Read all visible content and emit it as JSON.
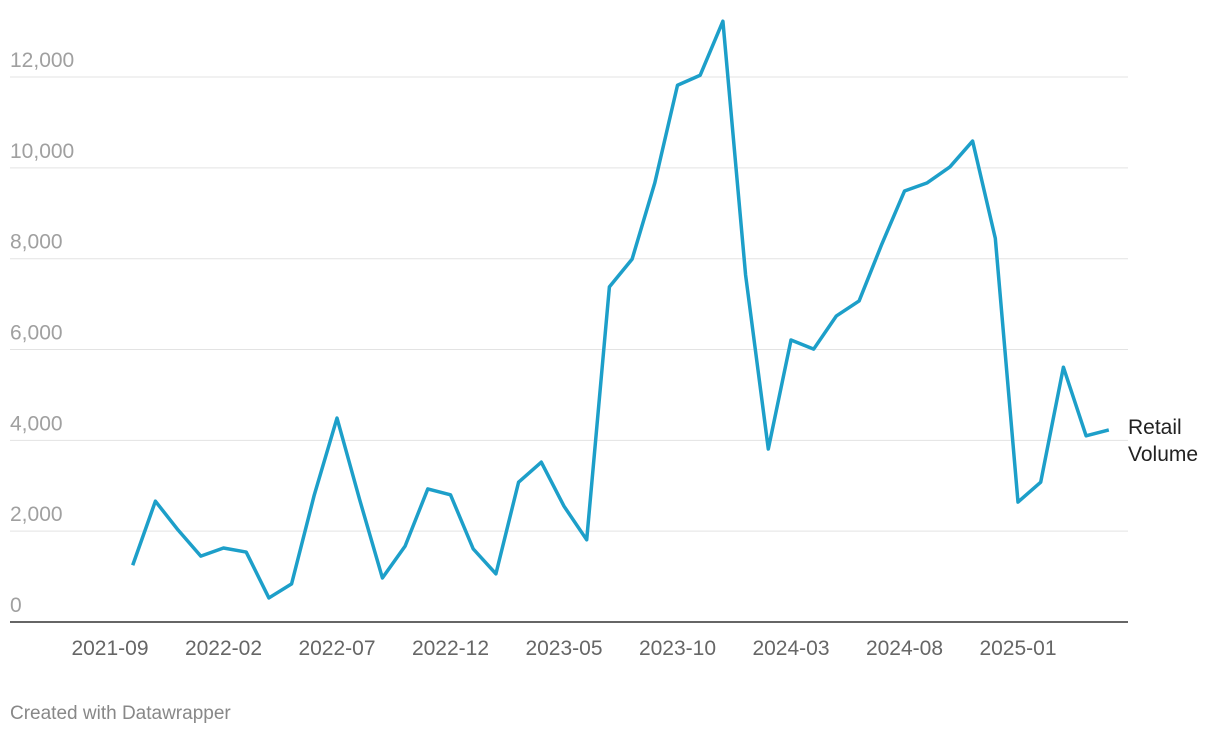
{
  "chart_data": {
    "type": "line",
    "categories": [
      "2021-09",
      null,
      null,
      null,
      null,
      "2022-02",
      null,
      null,
      null,
      null,
      "2022-07",
      null,
      null,
      null,
      null,
      "2022-12",
      null,
      null,
      null,
      null,
      "2023-05",
      null,
      null,
      null,
      null,
      "2023-10",
      null,
      null,
      null,
      null,
      "2024-03",
      null,
      null,
      null,
      null,
      "2024-08",
      null,
      null,
      null,
      null,
      "2025-01",
      null,
      null,
      null,
      null
    ],
    "series": [
      {
        "name": "Retail Volume",
        "color": "#1d9fc9",
        "values": [
          null,
          1250,
          2660,
          2025,
          1450,
          1630,
          1540,
          530,
          840,
          2800,
          4490,
          2690,
          970,
          1670,
          2930,
          2800,
          1610,
          1060,
          3080,
          3520,
          2550,
          1810,
          7380,
          7990,
          9670,
          11820,
          12040,
          13230,
          7640,
          3810,
          6210,
          6010,
          6740,
          7070,
          8320,
          9490,
          9670,
          10020,
          10590,
          8450,
          2640,
          3080,
          5610,
          4100,
          4230
        ]
      }
    ],
    "ylim": [
      0,
      13300
    ],
    "yticks": [
      0,
      {
        "value": 2000,
        "label": "2,000"
      },
      {
        "value": 4000,
        "label": "4,000"
      },
      {
        "value": 6000,
        "label": "6,000"
      },
      {
        "value": 8000,
        "label": "8,000"
      },
      {
        "value": 10000,
        "label": "10,000"
      },
      {
        "value": 12000,
        "label": "12,000"
      }
    ],
    "grid": true,
    "credit": "Created with Datawrapper"
  }
}
